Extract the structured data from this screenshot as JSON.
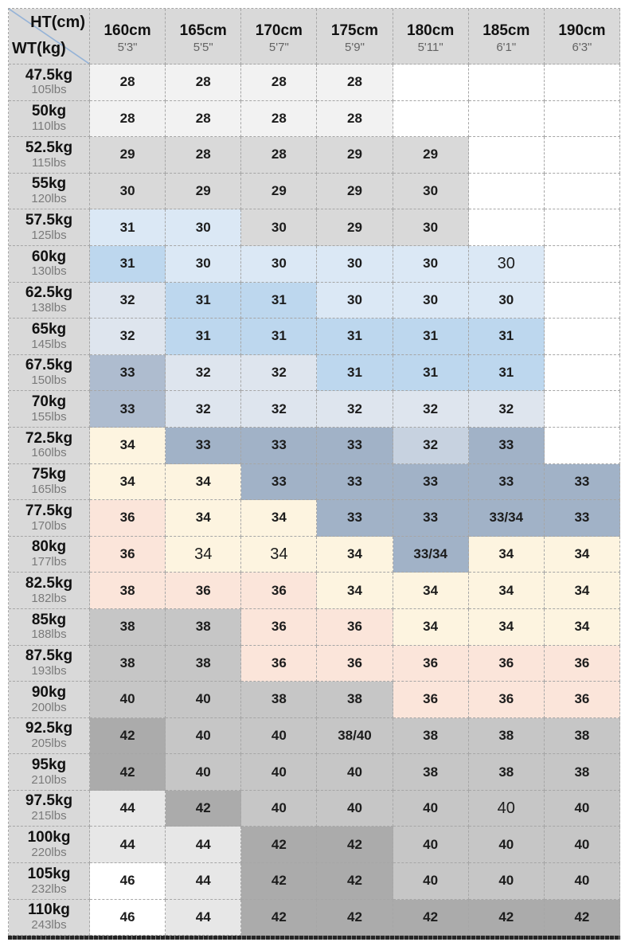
{
  "palette": {
    "white": "#ffffff",
    "rowlight": "#f2f2f2",
    "gray": "#d9d9d9",
    "medgray": "#c6c6c6",
    "darkgray": "#ababab",
    "lightgray": "#e7e7e7",
    "lightblue": "#dbe8f5",
    "medblue": "#bdd7ee",
    "grayblue": "#dee5ee",
    "slate": "#a1b2c7",
    "slatedark": "#aebccf",
    "slatelight": "#c7d2e0",
    "cream": "#fdf4e0",
    "pink": "#fbe5da",
    "header_bg": "#d9d9d9",
    "diagonal": "#95b3d7",
    "border": "#a6a6a6"
  },
  "chart_data": {
    "type": "table",
    "corner": {
      "top_right": "HT(cm)",
      "bottom_left": "WT(kg)"
    },
    "columns": [
      {
        "cm": "160cm",
        "ft": "5'3\""
      },
      {
        "cm": "165cm",
        "ft": "5'5\""
      },
      {
        "cm": "170cm",
        "ft": "5'7\""
      },
      {
        "cm": "175cm",
        "ft": "5'9\""
      },
      {
        "cm": "180cm",
        "ft": "5'11\""
      },
      {
        "cm": "185cm",
        "ft": "6'1\""
      },
      {
        "cm": "190cm",
        "ft": "6'3\""
      }
    ],
    "rows": [
      {
        "kg": "47.5kg",
        "lbs": "105lbs",
        "cells": [
          {
            "v": "28",
            "c": "rowlight"
          },
          {
            "v": "28",
            "c": "rowlight"
          },
          {
            "v": "28",
            "c": "rowlight"
          },
          {
            "v": "28",
            "c": "rowlight"
          },
          {
            "v": "",
            "c": "white"
          },
          {
            "v": "",
            "c": "white"
          },
          {
            "v": "",
            "c": "white"
          }
        ]
      },
      {
        "kg": "50kg",
        "lbs": "110lbs",
        "cells": [
          {
            "v": "28",
            "c": "rowlight"
          },
          {
            "v": "28",
            "c": "rowlight"
          },
          {
            "v": "28",
            "c": "rowlight"
          },
          {
            "v": "28",
            "c": "rowlight"
          },
          {
            "v": "",
            "c": "white"
          },
          {
            "v": "",
            "c": "white"
          },
          {
            "v": "",
            "c": "white"
          }
        ]
      },
      {
        "kg": "52.5kg",
        "lbs": "115lbs",
        "cells": [
          {
            "v": "29",
            "c": "gray"
          },
          {
            "v": "28",
            "c": "gray"
          },
          {
            "v": "28",
            "c": "gray"
          },
          {
            "v": "29",
            "c": "gray"
          },
          {
            "v": "29",
            "c": "gray"
          },
          {
            "v": "",
            "c": "white"
          },
          {
            "v": "",
            "c": "white"
          }
        ]
      },
      {
        "kg": "55kg",
        "lbs": "120lbs",
        "cells": [
          {
            "v": "30",
            "c": "gray"
          },
          {
            "v": "29",
            "c": "gray"
          },
          {
            "v": "29",
            "c": "gray"
          },
          {
            "v": "29",
            "c": "gray"
          },
          {
            "v": "30",
            "c": "gray"
          },
          {
            "v": "",
            "c": "white"
          },
          {
            "v": "",
            "c": "white"
          }
        ]
      },
      {
        "kg": "57.5kg",
        "lbs": "125lbs",
        "cells": [
          {
            "v": "31",
            "c": "lightblue"
          },
          {
            "v": "30",
            "c": "lightblue"
          },
          {
            "v": "30",
            "c": "gray"
          },
          {
            "v": "29",
            "c": "gray"
          },
          {
            "v": "30",
            "c": "gray"
          },
          {
            "v": "",
            "c": "white"
          },
          {
            "v": "",
            "c": "white"
          }
        ]
      },
      {
        "kg": "60kg",
        "lbs": "130lbs",
        "cells": [
          {
            "v": "31",
            "c": "medblue"
          },
          {
            "v": "30",
            "c": "lightblue"
          },
          {
            "v": "30",
            "c": "lightblue"
          },
          {
            "v": "30",
            "c": "lightblue"
          },
          {
            "v": "30",
            "c": "lightblue"
          },
          {
            "v": "30",
            "c": "lightblue",
            "light": true
          },
          {
            "v": "",
            "c": "white"
          }
        ]
      },
      {
        "kg": "62.5kg",
        "lbs": "138lbs",
        "cells": [
          {
            "v": "32",
            "c": "grayblue"
          },
          {
            "v": "31",
            "c": "medblue"
          },
          {
            "v": "31",
            "c": "medblue"
          },
          {
            "v": "30",
            "c": "lightblue"
          },
          {
            "v": "30",
            "c": "lightblue"
          },
          {
            "v": "30",
            "c": "lightblue"
          },
          {
            "v": "",
            "c": "white"
          }
        ]
      },
      {
        "kg": "65kg",
        "lbs": "145lbs",
        "cells": [
          {
            "v": "32",
            "c": "grayblue"
          },
          {
            "v": "31",
            "c": "medblue"
          },
          {
            "v": "31",
            "c": "medblue"
          },
          {
            "v": "31",
            "c": "medblue"
          },
          {
            "v": "31",
            "c": "medblue"
          },
          {
            "v": "31",
            "c": "medblue"
          },
          {
            "v": "",
            "c": "white"
          }
        ]
      },
      {
        "kg": "67.5kg",
        "lbs": "150lbs",
        "cells": [
          {
            "v": "33",
            "c": "slatedark"
          },
          {
            "v": "32",
            "c": "grayblue"
          },
          {
            "v": "32",
            "c": "grayblue"
          },
          {
            "v": "31",
            "c": "medblue"
          },
          {
            "v": "31",
            "c": "medblue"
          },
          {
            "v": "31",
            "c": "medblue"
          },
          {
            "v": "",
            "c": "white"
          }
        ]
      },
      {
        "kg": "70kg",
        "lbs": "155lbs",
        "cells": [
          {
            "v": "33",
            "c": "slatedark"
          },
          {
            "v": "32",
            "c": "grayblue"
          },
          {
            "v": "32",
            "c": "grayblue"
          },
          {
            "v": "32",
            "c": "grayblue"
          },
          {
            "v": "32",
            "c": "grayblue"
          },
          {
            "v": "32",
            "c": "grayblue"
          },
          {
            "v": "",
            "c": "white"
          }
        ]
      },
      {
        "kg": "72.5kg",
        "lbs": "160lbs",
        "cells": [
          {
            "v": "34",
            "c": "cream"
          },
          {
            "v": "33",
            "c": "slate"
          },
          {
            "v": "33",
            "c": "slate"
          },
          {
            "v": "33",
            "c": "slate"
          },
          {
            "v": "32",
            "c": "slatelight"
          },
          {
            "v": "33",
            "c": "slate"
          },
          {
            "v": "",
            "c": "white"
          }
        ]
      },
      {
        "kg": "75kg",
        "lbs": "165lbs",
        "cells": [
          {
            "v": "34",
            "c": "cream"
          },
          {
            "v": "34",
            "c": "cream"
          },
          {
            "v": "33",
            "c": "slate"
          },
          {
            "v": "33",
            "c": "slate"
          },
          {
            "v": "33",
            "c": "slate"
          },
          {
            "v": "33",
            "c": "slate"
          },
          {
            "v": "33",
            "c": "slate"
          }
        ]
      },
      {
        "kg": "77.5kg",
        "lbs": "170lbs",
        "cells": [
          {
            "v": "36",
            "c": "pink"
          },
          {
            "v": "34",
            "c": "cream"
          },
          {
            "v": "34",
            "c": "cream"
          },
          {
            "v": "33",
            "c": "slate"
          },
          {
            "v": "33",
            "c": "slate"
          },
          {
            "v": "33/34",
            "c": "slate"
          },
          {
            "v": "33",
            "c": "slate"
          }
        ]
      },
      {
        "kg": "80kg",
        "lbs": "177lbs",
        "cells": [
          {
            "v": "36",
            "c": "pink"
          },
          {
            "v": "34",
            "c": "cream",
            "light": true
          },
          {
            "v": "34",
            "c": "cream",
            "light": true
          },
          {
            "v": "34",
            "c": "cream"
          },
          {
            "v": "33/34",
            "c": "slate"
          },
          {
            "v": "34",
            "c": "cream"
          },
          {
            "v": "34",
            "c": "cream"
          }
        ]
      },
      {
        "kg": "82.5kg",
        "lbs": "182lbs",
        "cells": [
          {
            "v": "38",
            "c": "pink"
          },
          {
            "v": "36",
            "c": "pink"
          },
          {
            "v": "36",
            "c": "pink"
          },
          {
            "v": "34",
            "c": "cream"
          },
          {
            "v": "34",
            "c": "cream"
          },
          {
            "v": "34",
            "c": "cream"
          },
          {
            "v": "34",
            "c": "cream"
          }
        ]
      },
      {
        "kg": "85kg",
        "lbs": "188lbs",
        "cells": [
          {
            "v": "38",
            "c": "medgray"
          },
          {
            "v": "38",
            "c": "medgray"
          },
          {
            "v": "36",
            "c": "pink"
          },
          {
            "v": "36",
            "c": "pink"
          },
          {
            "v": "34",
            "c": "cream"
          },
          {
            "v": "34",
            "c": "cream"
          },
          {
            "v": "34",
            "c": "cream"
          }
        ]
      },
      {
        "kg": "87.5kg",
        "lbs": "193lbs",
        "cells": [
          {
            "v": "38",
            "c": "medgray"
          },
          {
            "v": "38",
            "c": "medgray"
          },
          {
            "v": "36",
            "c": "pink"
          },
          {
            "v": "36",
            "c": "pink"
          },
          {
            "v": "36",
            "c": "pink"
          },
          {
            "v": "36",
            "c": "pink"
          },
          {
            "v": "36",
            "c": "pink"
          }
        ]
      },
      {
        "kg": "90kg",
        "lbs": "200lbs",
        "cells": [
          {
            "v": "40",
            "c": "medgray"
          },
          {
            "v": "40",
            "c": "medgray"
          },
          {
            "v": "38",
            "c": "medgray"
          },
          {
            "v": "38",
            "c": "medgray"
          },
          {
            "v": "36",
            "c": "pink"
          },
          {
            "v": "36",
            "c": "pink"
          },
          {
            "v": "36",
            "c": "pink"
          }
        ]
      },
      {
        "kg": "92.5kg",
        "lbs": "205lbs",
        "cells": [
          {
            "v": "42",
            "c": "darkgray"
          },
          {
            "v": "40",
            "c": "medgray"
          },
          {
            "v": "40",
            "c": "medgray"
          },
          {
            "v": "38/40",
            "c": "medgray"
          },
          {
            "v": "38",
            "c": "medgray"
          },
          {
            "v": "38",
            "c": "medgray"
          },
          {
            "v": "38",
            "c": "medgray"
          }
        ]
      },
      {
        "kg": "95kg",
        "lbs": "210lbs",
        "cells": [
          {
            "v": "42",
            "c": "darkgray"
          },
          {
            "v": "40",
            "c": "medgray"
          },
          {
            "v": "40",
            "c": "medgray"
          },
          {
            "v": "40",
            "c": "medgray"
          },
          {
            "v": "38",
            "c": "medgray"
          },
          {
            "v": "38",
            "c": "medgray"
          },
          {
            "v": "38",
            "c": "medgray"
          }
        ]
      },
      {
        "kg": "97.5kg",
        "lbs": "215lbs",
        "cells": [
          {
            "v": "44",
            "c": "lightgray"
          },
          {
            "v": "42",
            "c": "darkgray"
          },
          {
            "v": "40",
            "c": "medgray"
          },
          {
            "v": "40",
            "c": "medgray"
          },
          {
            "v": "40",
            "c": "medgray"
          },
          {
            "v": "40",
            "c": "medgray",
            "light": true
          },
          {
            "v": "40",
            "c": "medgray"
          }
        ]
      },
      {
        "kg": "100kg",
        "lbs": "220lbs",
        "cells": [
          {
            "v": "44",
            "c": "lightgray"
          },
          {
            "v": "44",
            "c": "lightgray"
          },
          {
            "v": "42",
            "c": "darkgray"
          },
          {
            "v": "42",
            "c": "darkgray"
          },
          {
            "v": "40",
            "c": "medgray"
          },
          {
            "v": "40",
            "c": "medgray"
          },
          {
            "v": "40",
            "c": "medgray"
          }
        ]
      },
      {
        "kg": "105kg",
        "lbs": "232lbs",
        "cells": [
          {
            "v": "46",
            "c": "white"
          },
          {
            "v": "44",
            "c": "lightgray"
          },
          {
            "v": "42",
            "c": "darkgray"
          },
          {
            "v": "42",
            "c": "darkgray"
          },
          {
            "v": "40",
            "c": "medgray"
          },
          {
            "v": "40",
            "c": "medgray"
          },
          {
            "v": "40",
            "c": "medgray"
          }
        ]
      },
      {
        "kg": "110kg",
        "lbs": "243lbs",
        "cells": [
          {
            "v": "46",
            "c": "white"
          },
          {
            "v": "44",
            "c": "lightgray"
          },
          {
            "v": "42",
            "c": "darkgray"
          },
          {
            "v": "42",
            "c": "darkgray"
          },
          {
            "v": "42",
            "c": "darkgray"
          },
          {
            "v": "42",
            "c": "darkgray"
          },
          {
            "v": "42",
            "c": "darkgray"
          }
        ]
      }
    ]
  }
}
